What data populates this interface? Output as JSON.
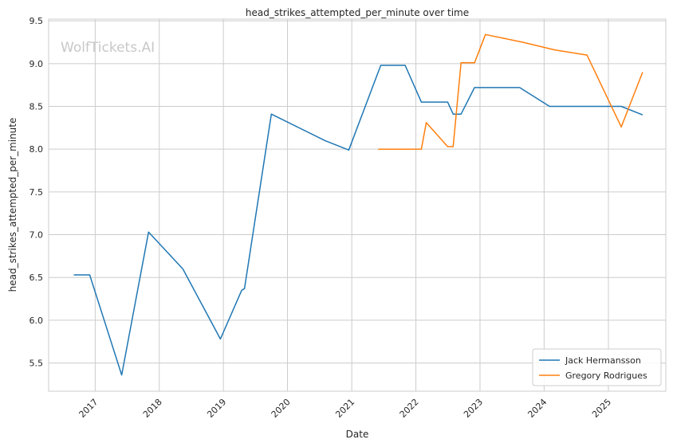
{
  "watermark": "WolfTickets.AI",
  "chart_data": {
    "type": "line",
    "title": "head_strikes_attempted_per_minute over time",
    "xlabel": "Date",
    "ylabel": "head_strikes_attempted_per_minute",
    "x_ticks": [
      "2017",
      "2018",
      "2019",
      "2020",
      "2021",
      "2022",
      "2023",
      "2024",
      "2025"
    ],
    "y_ticks": [
      "5.5",
      "6.0",
      "6.5",
      "7.0",
      "7.5",
      "8.0",
      "8.5",
      "9.0",
      "9.5"
    ],
    "xlim": [
      "2016-04-11",
      "2025-11-24"
    ],
    "ylim": [
      5.17,
      9.52
    ],
    "grid": true,
    "legend_position": "bottom-right",
    "series": [
      {
        "name": "Jack Hermansson",
        "color": "#1f77b4",
        "points": [
          [
            "2016-09-01",
            6.53
          ],
          [
            "2016-12-01",
            6.53
          ],
          [
            "2017-06-01",
            5.36
          ],
          [
            "2017-11-01",
            7.03
          ],
          [
            "2018-05-15",
            6.6
          ],
          [
            "2018-12-15",
            5.78
          ],
          [
            "2019-04-15",
            6.35
          ],
          [
            "2019-05-01",
            6.37
          ],
          [
            "2019-10-01",
            8.41
          ],
          [
            "2020-08-01",
            8.1
          ],
          [
            "2020-12-15",
            7.99
          ],
          [
            "2021-06-15",
            8.98
          ],
          [
            "2021-11-01",
            8.98
          ],
          [
            "2022-02-01",
            8.55
          ],
          [
            "2022-07-01",
            8.55
          ],
          [
            "2022-08-01",
            8.41
          ],
          [
            "2022-09-15",
            8.41
          ],
          [
            "2022-12-01",
            8.72
          ],
          [
            "2023-08-15",
            8.72
          ],
          [
            "2024-02-01",
            8.5
          ],
          [
            "2025-03-15",
            8.5
          ],
          [
            "2025-07-15",
            8.4
          ]
        ]
      },
      {
        "name": "Gregory Rodrigues",
        "color": "#ff7f0e",
        "points": [
          [
            "2021-06-01",
            8.0
          ],
          [
            "2022-02-01",
            8.0
          ],
          [
            "2022-03-01",
            8.31
          ],
          [
            "2022-07-01",
            8.03
          ],
          [
            "2022-08-01",
            8.03
          ],
          [
            "2022-09-15",
            9.01
          ],
          [
            "2022-12-01",
            9.01
          ],
          [
            "2023-02-01",
            9.34
          ],
          [
            "2023-09-01",
            9.25
          ],
          [
            "2024-03-01",
            9.16
          ],
          [
            "2024-09-01",
            9.1
          ],
          [
            "2025-03-15",
            8.26
          ],
          [
            "2025-07-15",
            8.9
          ]
        ]
      }
    ]
  }
}
